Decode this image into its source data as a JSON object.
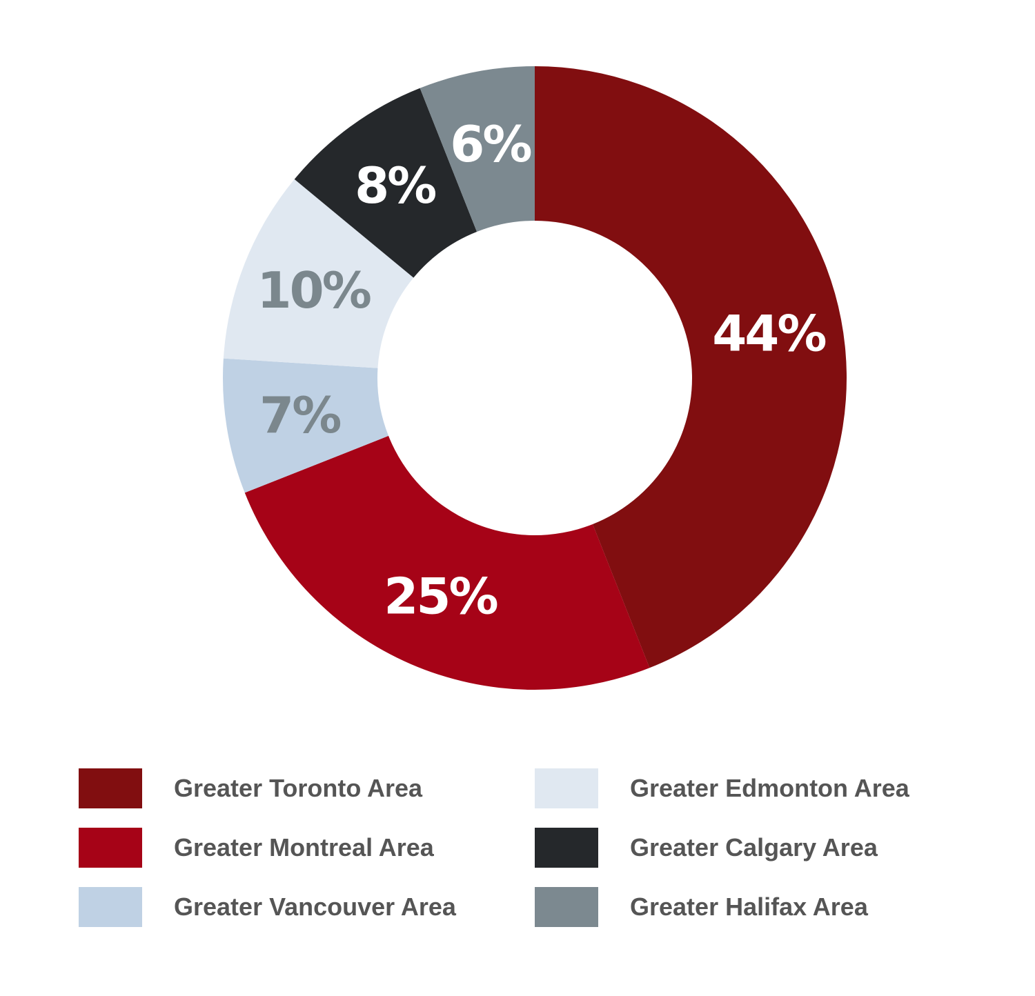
{
  "chart_data": {
    "type": "pie",
    "variant": "donut",
    "slices": [
      {
        "name": "Greater Toronto Area",
        "value": 44,
        "label": "44%",
        "color": "#810e10",
        "label_color": "#ffffff"
      },
      {
        "name": "Greater Montreal Area",
        "value": 25,
        "label": "25%",
        "color": "#a60317",
        "label_color": "#ffffff"
      },
      {
        "name": "Greater Vancouver Area",
        "value": 7,
        "label": "7%",
        "color": "#bfd1e4",
        "label_color": "#7b878d"
      },
      {
        "name": "Greater Edmonton Area",
        "value": 10,
        "label": "10%",
        "color": "#e0e8f1",
        "label_color": "#7b878d"
      },
      {
        "name": "Greater Calgary Area",
        "value": 8,
        "label": "8%",
        "color": "#25282b",
        "label_color": "#ffffff"
      },
      {
        "name": "Greater Halifax Area",
        "value": 6,
        "label": "6%",
        "color": "#7c8990",
        "label_color": "#ffffff"
      }
    ],
    "legend_position": "bottom",
    "legend_order": [
      "Greater Toronto Area",
      "Greater Montreal Area",
      "Greater Vancouver Area",
      "Greater Edmonton Area",
      "Greater Calgary Area",
      "Greater Halifax Area"
    ]
  }
}
